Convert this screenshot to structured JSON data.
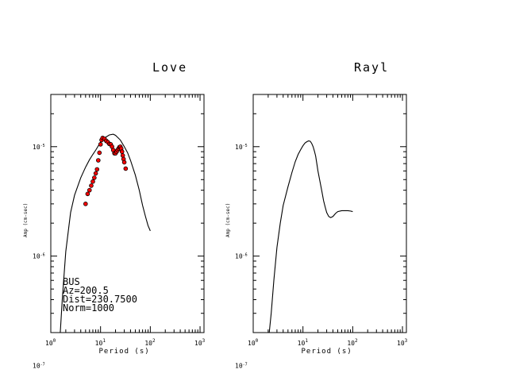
{
  "chart_data": [
    {
      "type": "line",
      "title": "Love",
      "xlabel": "Period (s)",
      "ylabel": "Amp (cm-sec)",
      "xscale": "log",
      "yscale": "log",
      "xlim": [
        1,
        1200
      ],
      "ylim": [
        2e-07,
        3e-05
      ],
      "x_ticklabels": [
        "10^0",
        "10^1",
        "10^2",
        "10^3"
      ],
      "y_ticklabels": [
        "10^-5",
        "10^-6",
        "10^-7"
      ],
      "series": [
        {
          "kind": "line",
          "color": "#000000",
          "points": [
            [
              1.55,
              2e-07
            ],
            [
              1.7,
              4e-07
            ],
            [
              2.0,
              1.1e-06
            ],
            [
              2.5,
              2.5e-06
            ],
            [
              3.0,
              3.6e-06
            ],
            [
              4.0,
              5.2e-06
            ],
            [
              5.0,
              6.5e-06
            ],
            [
              6.0,
              7.6e-06
            ],
            [
              7.0,
              8.5e-06
            ],
            [
              8.0,
              9.3e-06
            ],
            [
              10.0,
              1.1e-05
            ],
            [
              12.0,
              1.2e-05
            ],
            [
              15.0,
              1.28e-05
            ],
            [
              18.0,
              1.3e-05
            ],
            [
              20.0,
              1.27e-05
            ],
            [
              25.0,
              1.15e-05
            ],
            [
              30.0,
              1e-05
            ],
            [
              35.0,
              8.8e-06
            ],
            [
              40.0,
              7.5e-06
            ],
            [
              50.0,
              5.5e-06
            ],
            [
              60.0,
              4e-06
            ],
            [
              70.0,
              2.9e-06
            ],
            [
              80.0,
              2.3e-06
            ],
            [
              90.0,
              1.9e-06
            ],
            [
              100.0,
              1.7e-06
            ]
          ]
        },
        {
          "kind": "scatter",
          "color": "#ff0000",
          "points": [
            [
              5.0,
              3e-06
            ],
            [
              5.5,
              3.7e-06
            ],
            [
              6.0,
              4e-06
            ],
            [
              6.5,
              4.4e-06
            ],
            [
              7.0,
              4.8e-06
            ],
            [
              7.5,
              5.2e-06
            ],
            [
              8.0,
              5.7e-06
            ],
            [
              8.5,
              6.2e-06
            ],
            [
              9.0,
              7.5e-06
            ],
            [
              9.5,
              8.8e-06
            ],
            [
              10.0,
              1.05e-05
            ],
            [
              10.5,
              1.15e-05
            ],
            [
              11.0,
              1.2e-05
            ],
            [
              12.0,
              1.18e-05
            ],
            [
              13.0,
              1.13e-05
            ],
            [
              14.0,
              1.1e-05
            ],
            [
              15.0,
              1.06e-05
            ],
            [
              16.0,
              1.05e-05
            ],
            [
              17.0,
              1e-05
            ],
            [
              18.0,
              9.3e-06
            ],
            [
              19.0,
              8.7e-06
            ],
            [
              20.0,
              8.7e-06
            ],
            [
              21.0,
              9e-06
            ],
            [
              22.0,
              9.3e-06
            ],
            [
              23.0,
              9.6e-06
            ],
            [
              24.0,
              9.9e-06
            ],
            [
              25.0,
              1e-05
            ],
            [
              26.0,
              9.6e-06
            ],
            [
              27.0,
              9e-06
            ],
            [
              28.0,
              8.3e-06
            ],
            [
              29.0,
              7.7e-06
            ],
            [
              30.0,
              7.2e-06
            ],
            [
              32.0,
              6.3e-06
            ]
          ]
        }
      ],
      "annotation": [
        "BUS",
        "Az=200.5",
        "Dist=230.7500",
        "Norm=1000"
      ]
    },
    {
      "type": "line",
      "title": "Rayl",
      "xlabel": "Period (s)",
      "ylabel": "Amp (cm-sec)",
      "xscale": "log",
      "yscale": "log",
      "xlim": [
        1,
        1200
      ],
      "ylim": [
        2e-07,
        3e-05
      ],
      "x_ticklabels": [
        "10^0",
        "10^1",
        "10^2",
        "10^3"
      ],
      "y_ticklabels": [
        "10^-5",
        "10^-6",
        "10^-7"
      ],
      "series": [
        {
          "kind": "line",
          "color": "#000000",
          "points": [
            [
              2.1,
              2e-07
            ],
            [
              2.3,
              3e-07
            ],
            [
              2.6,
              6e-07
            ],
            [
              3.0,
              1.2e-06
            ],
            [
              3.5,
              2e-06
            ],
            [
              4.0,
              2.9e-06
            ],
            [
              5.0,
              4.3e-06
            ],
            [
              6.0,
              5.8e-06
            ],
            [
              7.0,
              7.3e-06
            ],
            [
              8.0,
              8.5e-06
            ],
            [
              9.0,
              9.4e-06
            ],
            [
              10.0,
              1.02e-05
            ],
            [
              11.0,
              1.08e-05
            ],
            [
              12.0,
              1.11e-05
            ],
            [
              13.0,
              1.13e-05
            ],
            [
              14.0,
              1.12e-05
            ],
            [
              15.0,
              1.07e-05
            ],
            [
              16.0,
              1e-05
            ],
            [
              17.0,
              9.1e-06
            ],
            [
              18.0,
              8.2e-06
            ],
            [
              19.0,
              7e-06
            ],
            [
              20.0,
              6e-06
            ],
            [
              22.0,
              4.8e-06
            ],
            [
              24.0,
              3.9e-06
            ],
            [
              26.0,
              3.2e-06
            ],
            [
              28.0,
              2.8e-06
            ],
            [
              30.0,
              2.5e-06
            ],
            [
              33.0,
              2.3e-06
            ],
            [
              36.0,
              2.25e-06
            ],
            [
              40.0,
              2.3e-06
            ],
            [
              45.0,
              2.45e-06
            ],
            [
              50.0,
              2.55e-06
            ],
            [
              60.0,
              2.6e-06
            ],
            [
              70.0,
              2.6e-06
            ],
            [
              80.0,
              2.6e-06
            ],
            [
              90.0,
              2.58e-06
            ],
            [
              100.0,
              2.55e-06
            ]
          ]
        }
      ]
    }
  ]
}
